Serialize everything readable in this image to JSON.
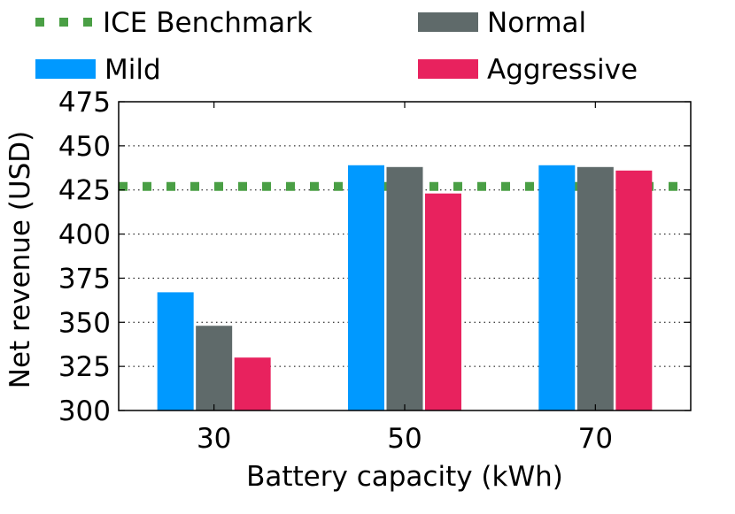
{
  "chart_data": {
    "type": "bar",
    "title": "",
    "xlabel": "Battery capacity (kWh)",
    "ylabel": "Net revenue (USD)",
    "categories": [
      "30",
      "50",
      "70"
    ],
    "series": [
      {
        "name": "Mild",
        "color": "#0099ff",
        "values": [
          367,
          439,
          439
        ]
      },
      {
        "name": "Normal",
        "color": "#5f6a6a",
        "values": [
          348,
          438,
          438
        ]
      },
      {
        "name": "Aggressive",
        "color": "#e8225e",
        "values": [
          330,
          423,
          436
        ]
      }
    ],
    "benchmark": {
      "name": "ICE Benchmark",
      "value": 427,
      "color": "#4a9f45",
      "style": "dashed"
    },
    "ylim": [
      300,
      475
    ],
    "yticks": [
      300,
      325,
      350,
      375,
      400,
      425,
      450,
      475
    ],
    "grid": "horizontal-dotted",
    "legend": "top"
  }
}
